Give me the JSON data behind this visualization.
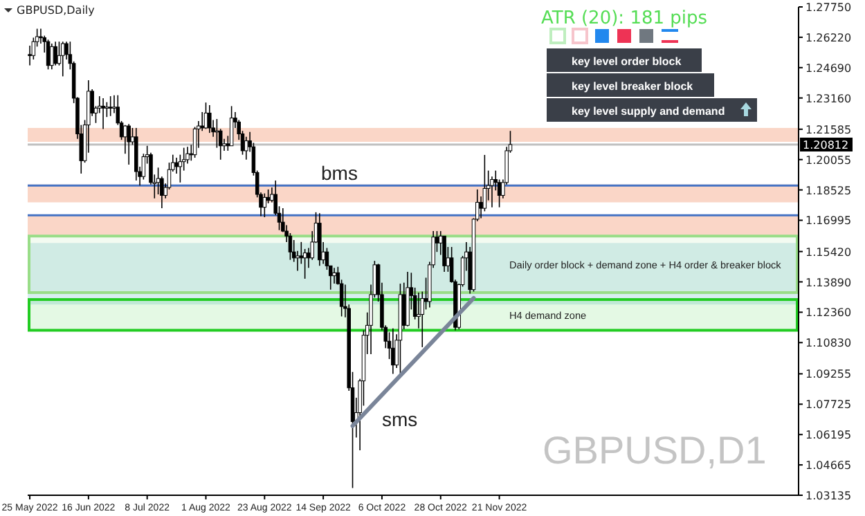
{
  "chart_data": {
    "type": "candlestick",
    "title": "GBPUSD,Daily",
    "subtitle": "ATR (20): 181 pips",
    "annotations": [
      "key level order block",
      "key level breaker block",
      "key level supply and demand",
      "GBPUSD,D1",
      "bms",
      "sms"
    ],
    "categories": [
      "25 May 2022",
      null,
      null,
      null,
      null,
      null,
      null,
      null,
      null,
      null,
      null,
      null,
      null,
      null,
      null,
      null,
      "16 Jun 2022",
      null,
      null,
      null,
      null,
      null,
      null,
      null,
      null,
      null,
      null,
      null,
      null,
      null,
      null,
      null,
      "8 Jul 2022",
      null,
      null,
      null,
      null,
      null,
      null,
      null,
      null,
      null,
      null,
      null,
      null,
      null,
      null,
      null,
      "1 Aug 2022",
      null,
      null,
      null,
      null,
      null,
      null,
      null,
      null,
      null,
      null,
      null,
      null,
      null,
      null,
      null,
      "23 Aug 2022",
      null,
      null,
      null,
      null,
      null,
      null,
      null,
      null,
      null,
      null,
      null,
      null,
      null,
      null,
      null,
      "14 Sep 2022",
      null,
      null,
      null,
      null,
      null,
      null,
      null,
      null,
      null,
      null,
      null,
      null,
      null,
      null,
      null,
      "6 Oct 2022",
      null,
      null,
      null,
      null,
      null,
      null,
      null,
      null,
      null,
      null,
      null,
      null,
      null,
      null,
      null,
      "28 Oct 2022",
      null,
      null,
      null,
      null,
      null,
      null,
      null,
      null,
      null,
      null,
      null,
      null,
      null,
      null,
      null,
      "21 Nov 2022",
      null,
      null,
      null,
      null,
      null,
      null,
      null,
      null,
      null,
      null,
      null,
      null,
      null,
      null,
      null,
      null,
      null,
      null,
      null,
      null,
      null,
      null,
      null,
      null,
      null,
      null,
      null,
      null,
      null,
      null,
      null,
      null,
      null,
      null,
      null,
      null,
      null,
      null,
      null,
      null,
      null,
      null,
      null,
      null,
      null,
      null,
      null,
      null,
      null,
      null,
      null,
      null,
      null,
      null,
      null,
      null,
      null,
      null,
      null,
      null,
      null,
      null,
      null,
      null,
      null,
      null,
      null,
      null,
      null,
      null,
      null,
      null,
      null,
      null,
      null,
      null,
      null,
      null,
      null,
      null,
      null
    ],
    "color": "#000000",
    "ohlc": [
      [
        1.2535,
        1.258,
        1.248,
        1.253
      ],
      [
        1.253,
        1.262,
        1.251,
        1.26
      ],
      [
        1.26,
        1.2665,
        1.2575,
        1.2625
      ],
      [
        1.2625,
        1.2665,
        1.259,
        1.262
      ],
      [
        1.262,
        1.263,
        1.2545,
        1.26
      ],
      [
        1.26,
        1.261,
        1.246,
        1.248
      ],
      [
        1.248,
        1.259,
        1.246,
        1.2575
      ],
      [
        1.2575,
        1.26,
        1.248,
        1.249
      ],
      [
        1.249,
        1.26,
        1.248,
        1.253
      ],
      [
        1.253,
        1.26,
        1.2425,
        1.259
      ],
      [
        1.259,
        1.26,
        1.251,
        1.2535
      ],
      [
        1.2535,
        1.26,
        1.246,
        1.249
      ],
      [
        1.249,
        1.25,
        1.229,
        1.2315
      ],
      [
        1.2315,
        1.232,
        1.211,
        1.2135
      ],
      [
        1.2135,
        1.218,
        1.1935,
        1.2
      ],
      [
        1.2,
        1.2205,
        1.199,
        1.218
      ],
      [
        1.218,
        1.2405,
        1.204,
        1.235
      ],
      [
        1.235,
        1.236,
        1.2225,
        1.224
      ],
      [
        1.224,
        1.2275,
        1.219,
        1.2265
      ],
      [
        1.2265,
        1.2325,
        1.224,
        1.2275
      ],
      [
        1.2275,
        1.2315,
        1.216,
        1.2265
      ],
      [
        1.2265,
        1.2295,
        1.222,
        1.227
      ],
      [
        1.227,
        1.2325,
        1.2225,
        1.2265
      ],
      [
        1.2265,
        1.233,
        1.224,
        1.227
      ],
      [
        1.227,
        1.233,
        1.218,
        1.219
      ],
      [
        1.219,
        1.22,
        1.2105,
        1.212
      ],
      [
        1.212,
        1.218,
        1.2035,
        1.2175
      ],
      [
        1.2175,
        1.2185,
        1.198,
        1.2095
      ],
      [
        1.2095,
        1.2165,
        1.208,
        1.212
      ],
      [
        1.212,
        1.2165,
        1.19,
        1.1945
      ],
      [
        1.1945,
        1.197,
        1.1875,
        1.192
      ],
      [
        1.192,
        1.2035,
        1.1905,
        1.202
      ],
      [
        1.202,
        1.2075,
        1.1985,
        1.203
      ],
      [
        1.203,
        1.204,
        1.188,
        1.189
      ],
      [
        1.189,
        1.193,
        1.181,
        1.189
      ],
      [
        1.189,
        1.1965,
        1.183,
        1.191
      ],
      [
        1.191,
        1.192,
        1.176,
        1.1825
      ],
      [
        1.1825,
        1.1885,
        1.181,
        1.1865
      ],
      [
        1.1865,
        1.199,
        1.1855,
        1.1955
      ],
      [
        1.1955,
        1.203,
        1.1945,
        1.199
      ],
      [
        1.199,
        1.2015,
        1.1935,
        1.197
      ],
      [
        1.197,
        1.203,
        1.189,
        1.1995
      ],
      [
        1.1995,
        1.2065,
        1.195,
        1.2005
      ],
      [
        1.2005,
        1.207,
        1.1985,
        1.2035
      ],
      [
        1.2035,
        1.208,
        1.2,
        1.203
      ],
      [
        1.203,
        1.217,
        1.2015,
        1.216
      ],
      [
        1.216,
        1.22,
        1.2065,
        1.2175
      ],
      [
        1.2175,
        1.2245,
        1.215,
        1.2165
      ],
      [
        1.2165,
        1.2293,
        1.216,
        1.224
      ],
      [
        1.224,
        1.228,
        1.214,
        1.2165
      ],
      [
        1.2165,
        1.2205,
        1.212,
        1.2145
      ],
      [
        1.2145,
        1.221,
        1.2065,
        1.215
      ],
      [
        1.215,
        1.216,
        1.2005,
        1.2075
      ],
      [
        1.2075,
        1.211,
        1.205,
        1.2085
      ],
      [
        1.2085,
        1.2125,
        1.205,
        1.2075
      ],
      [
        1.2075,
        1.2275,
        1.2075,
        1.2215
      ],
      [
        1.2215,
        1.2245,
        1.2165,
        1.2195
      ],
      [
        1.2195,
        1.2205,
        1.2105,
        1.2135
      ],
      [
        1.2135,
        1.215,
        1.203,
        1.205
      ],
      [
        1.205,
        1.212,
        1.2005,
        1.21
      ],
      [
        1.21,
        1.2145,
        1.2045,
        1.207
      ],
      [
        1.207,
        1.209,
        1.1925,
        1.194
      ],
      [
        1.194,
        1.195,
        1.1815,
        1.183
      ],
      [
        1.183,
        1.184,
        1.172,
        1.1765
      ],
      [
        1.1765,
        1.1835,
        1.1715,
        1.1815
      ],
      [
        1.1815,
        1.1855,
        1.1785,
        1.18
      ],
      [
        1.18,
        1.1865,
        1.179,
        1.183
      ],
      [
        1.183,
        1.19,
        1.1725,
        1.1735
      ],
      [
        1.1735,
        1.177,
        1.165,
        1.169
      ],
      [
        1.169,
        1.176,
        1.164,
        1.1645
      ],
      [
        1.1645,
        1.1675,
        1.159,
        1.162
      ],
      [
        1.162,
        1.1635,
        1.15,
        1.154
      ],
      [
        1.154,
        1.16,
        1.149,
        1.151
      ],
      [
        1.151,
        1.1545,
        1.1445,
        1.152
      ],
      [
        1.152,
        1.159,
        1.148,
        1.151
      ],
      [
        1.151,
        1.1555,
        1.1405,
        1.1535
      ],
      [
        1.1535,
        1.156,
        1.146,
        1.151
      ],
      [
        1.151,
        1.1645,
        1.15,
        1.159
      ],
      [
        1.159,
        1.174,
        1.1585,
        1.1685
      ],
      [
        1.1685,
        1.1735,
        1.147,
        1.15
      ],
      [
        1.15,
        1.159,
        1.148,
        1.154
      ],
      [
        1.154,
        1.156,
        1.145,
        1.147
      ],
      [
        1.147,
        1.147,
        1.135,
        1.142
      ],
      [
        1.142,
        1.146,
        1.138,
        1.1435
      ],
      [
        1.1435,
        1.1465,
        1.1375,
        1.138
      ],
      [
        1.138,
        1.14,
        1.1215,
        1.1265
      ],
      [
        1.1265,
        1.1375,
        1.121,
        1.1255
      ],
      [
        1.1255,
        1.1275,
        1.084,
        1.0855
      ],
      [
        1.0855,
        1.0935,
        1.035,
        1.0685
      ],
      [
        1.0685,
        1.0805,
        1.0605,
        1.073
      ],
      [
        1.073,
        1.09,
        1.054,
        1.089
      ],
      [
        1.089,
        1.1145,
        1.0765,
        1.112
      ],
      [
        1.112,
        1.1235,
        1.1025,
        1.117
      ],
      [
        1.117,
        1.1375,
        1.1025,
        1.1325
      ],
      [
        1.1325,
        1.1495,
        1.131,
        1.1475
      ],
      [
        1.1475,
        1.148,
        1.129,
        1.1325
      ],
      [
        1.1325,
        1.1385,
        1.1145,
        1.116
      ],
      [
        1.116,
        1.117,
        1.1055,
        1.109
      ],
      [
        1.109,
        1.1135,
        1.1,
        1.1055
      ],
      [
        1.1055,
        1.1155,
        1.0925,
        1.097
      ],
      [
        1.097,
        1.1125,
        1.0955,
        1.1095
      ],
      [
        1.1095,
        1.138,
        1.0925,
        1.1325
      ],
      [
        1.1325,
        1.1385,
        1.115,
        1.117
      ],
      [
        1.117,
        1.144,
        1.1165,
        1.136
      ],
      [
        1.136,
        1.1435,
        1.125,
        1.132
      ],
      [
        1.132,
        1.136,
        1.12,
        1.1215
      ],
      [
        1.1215,
        1.1335,
        1.1155,
        1.1225
      ],
      [
        1.1225,
        1.134,
        1.106,
        1.1305
      ],
      [
        1.1305,
        1.141,
        1.125,
        1.129
      ],
      [
        1.129,
        1.149,
        1.126,
        1.1475
      ],
      [
        1.1475,
        1.1645,
        1.146,
        1.1615
      ],
      [
        1.1615,
        1.1645,
        1.154,
        1.1585
      ],
      [
        1.1585,
        1.1645,
        1.1525,
        1.162
      ],
      [
        1.162,
        1.162,
        1.144,
        1.147
      ],
      [
        1.147,
        1.1565,
        1.144,
        1.151
      ],
      [
        1.151,
        1.1565,
        1.1385,
        1.139
      ],
      [
        1.139,
        1.14,
        1.1145,
        1.116
      ],
      [
        1.116,
        1.138,
        1.115,
        1.1375
      ],
      [
        1.1375,
        1.152,
        1.1365,
        1.151
      ],
      [
        1.151,
        1.159,
        1.1445,
        1.154
      ],
      [
        1.154,
        1.1565,
        1.133,
        1.135
      ],
      [
        1.135,
        1.171,
        1.134,
        1.1705
      ],
      [
        1.1705,
        1.1855,
        1.1695,
        1.179
      ],
      [
        1.179,
        1.182,
        1.171,
        1.176
      ],
      [
        1.176,
        1.2029,
        1.1745,
        1.186
      ],
      [
        1.186,
        1.195,
        1.18,
        1.1875
      ],
      [
        1.1875,
        1.192,
        1.1765,
        1.1905
      ],
      [
        1.1905,
        1.195,
        1.185,
        1.189
      ],
      [
        1.189,
        1.1905,
        1.1765,
        1.1825
      ],
      [
        1.1825,
        1.1905,
        1.181,
        1.189
      ],
      [
        1.189,
        1.207,
        1.188,
        1.205
      ],
      [
        1.205,
        1.215,
        1.204,
        1.20812
      ],
      null,
      null,
      null,
      null,
      null,
      null,
      null,
      null,
      null,
      null,
      null,
      null,
      null,
      null,
      null,
      null,
      null,
      null,
      null,
      null,
      null,
      null,
      null,
      null,
      null,
      null,
      null,
      null,
      null,
      null,
      null,
      null,
      null,
      null,
      null,
      null,
      null,
      null,
      null,
      null,
      null,
      null,
      null,
      null,
      null,
      null,
      null,
      null,
      null,
      null,
      null,
      null,
      null,
      null,
      null,
      null,
      null,
      null,
      null,
      null,
      null,
      null,
      null,
      null,
      null,
      null,
      null,
      null,
      null,
      null,
      null,
      null,
      null,
      null,
      null,
      null,
      null,
      null
    ],
    "series": [
      {
        "type": "line",
        "color": "#7a8599",
        "values": [
          null,
          null,
          null,
          null,
          null,
          null,
          null,
          null,
          null,
          null,
          null,
          null,
          null,
          null,
          null,
          null,
          null,
          null,
          null,
          null,
          null,
          null,
          null,
          null,
          null,
          null,
          null,
          null,
          null,
          null,
          null,
          null,
          null,
          null,
          null,
          null,
          null,
          null,
          null,
          null,
          null,
          null,
          null,
          null,
          null,
          null,
          null,
          null,
          null,
          null,
          null,
          null,
          null,
          null,
          null,
          null,
          null,
          null,
          null,
          null,
          null,
          null,
          null,
          null,
          null,
          null,
          null,
          null,
          null,
          null,
          null,
          null,
          null,
          null,
          null,
          null,
          null,
          null,
          null,
          null,
          null,
          null,
          null,
          null,
          null,
          null,
          null,
          null,
          1.0663,
          null,
          null,
          null,
          null,
          null,
          null,
          null,
          null,
          null,
          null,
          null,
          null,
          null,
          null,
          null,
          null,
          null,
          null,
          null,
          null,
          null,
          null,
          null,
          null,
          null,
          null,
          null,
          null,
          null,
          null,
          null,
          null,
          1.1307,
          null,
          null,
          null,
          null,
          null,
          null,
          null,
          null,
          null,
          null,
          null,
          null,
          null,
          null,
          null,
          null,
          null,
          null,
          null,
          null,
          null,
          null,
          null,
          null,
          null,
          null,
          null,
          null,
          null,
          null,
          null,
          null,
          null,
          null,
          null,
          null,
          null,
          null,
          null,
          null,
          null,
          null,
          null,
          null,
          null,
          null,
          null,
          null,
          null,
          null,
          null,
          null,
          null,
          null,
          null,
          null,
          null,
          null,
          null,
          null,
          null,
          null,
          null,
          null,
          null,
          null,
          null,
          null,
          null,
          null,
          null,
          null,
          null,
          null,
          null,
          null,
          null,
          null,
          null,
          null,
          null,
          null,
          null,
          null,
          null,
          null,
          null,
          null
        ]
      }
    ],
    "ylim": [
      1.03135,
      1.2775
    ],
    "yticks": [
      {
        "value": 1.2775,
        "label": "1.27750"
      },
      {
        "value": 1.2622,
        "label": "1.26220"
      },
      {
        "value": 1.2469,
        "label": "1.24690"
      },
      {
        "value": 1.2316,
        "label": "1.23160"
      },
      {
        "value": 1.21585,
        "label": "1.21585"
      },
      {
        "value": 1.20055,
        "label": "1.20055"
      },
      {
        "value": 1.18525,
        "label": "1.18525"
      },
      {
        "value": 1.16995,
        "label": "1.16995"
      },
      {
        "value": 1.1542,
        "label": "1.15420"
      },
      {
        "value": 1.1389,
        "label": "1.13890"
      },
      {
        "value": 1.1236,
        "label": "1.12360"
      },
      {
        "value": 1.1083,
        "label": "1.10830"
      },
      {
        "value": 1.09255,
        "label": "1.09255"
      },
      {
        "value": 1.07725,
        "label": "1.07725"
      },
      {
        "value": 1.06195,
        "label": "1.06195"
      },
      {
        "value": 1.04665,
        "label": "1.04665"
      },
      {
        "value": 1.03135,
        "label": "1.03135"
      }
    ],
    "ref_lines": [
      {
        "axis": "y",
        "value": 1.20812,
        "label": "1.20812",
        "color": "#c0c0c0"
      },
      {
        "axis": "y",
        "value": 1.1875,
        "color": "#4472c4"
      },
      {
        "axis": "y",
        "value": 1.1725,
        "color": "#4472c4"
      }
    ],
    "bands": [
      {
        "axis": "y",
        "from": 1.2095,
        "to": 1.2165,
        "color": "#f4a582"
      },
      {
        "axis": "y",
        "from": 1.179,
        "to": 1.188,
        "color": "#f4a582"
      },
      {
        "axis": "y",
        "from": 1.162,
        "to": 1.1725,
        "color": "#f4a582"
      },
      {
        "axis": "y",
        "from": 1.1275,
        "to": 1.1585,
        "color": "#a8d8e0"
      },
      {
        "axis": "y",
        "from": 1.1335,
        "to": 1.162,
        "label": "Daily order block + demand zone + H4 order & breaker block",
        "color": "#99dd88"
      },
      {
        "axis": "y",
        "from": 1.1145,
        "to": 1.13,
        "label": "H4 demand zone",
        "color": "#22cc22"
      }
    ],
    "grid": false
  }
}
